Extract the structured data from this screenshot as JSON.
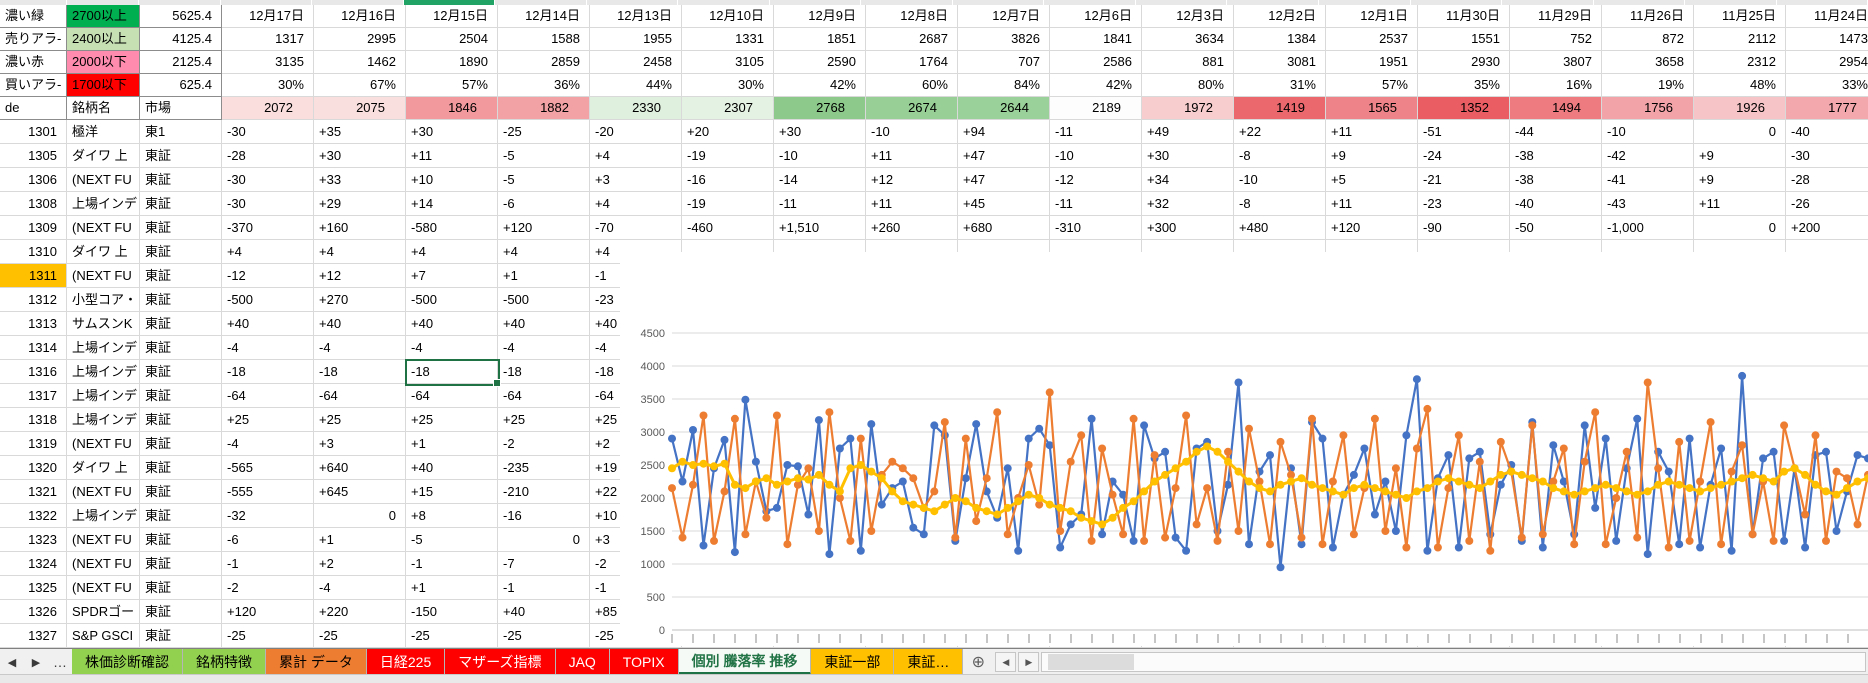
{
  "legend_rows": [
    {
      "label": "濃い緑",
      "threshold": "2700以上",
      "threshold_bg": "#00B050",
      "amount": "5625.4"
    },
    {
      "label": "売りアラ-",
      "threshold": "2400以上",
      "threshold_bg": "#C6E0B4",
      "amount": "4125.4"
    },
    {
      "label": "濃い赤",
      "threshold": "2000以下",
      "threshold_bg": "#FF8CAF",
      "amount": "2125.4"
    },
    {
      "label": "買いアラ-",
      "threshold": "1700以下",
      "threshold_bg": "#FF0000",
      "amount": "625.4"
    }
  ],
  "dates": [
    "12月17日",
    "12月16日",
    "12月15日",
    "12月14日",
    "12月13日",
    "12月10日",
    "12月9日",
    "12月8日",
    "12月7日",
    "12月6日",
    "12月3日",
    "12月2日",
    "12月1日",
    "11月30日",
    "11月29日",
    "11月26日",
    "11月25日",
    "11月24日"
  ],
  "date_rows": {
    "counts_a": [
      "1317",
      "2995",
      "2504",
      "1588",
      "1955",
      "1331",
      "1851",
      "2687",
      "3826",
      "1841",
      "3634",
      "1384",
      "2537",
      "1551",
      "752",
      "872",
      "2112",
      "1473"
    ],
    "counts_b": [
      "3135",
      "1462",
      "1890",
      "2859",
      "2458",
      "3105",
      "2590",
      "1764",
      "707",
      "2586",
      "881",
      "3081",
      "1951",
      "2930",
      "3807",
      "3658",
      "2312",
      "2954"
    ],
    "percents": [
      "30%",
      "67%",
      "57%",
      "36%",
      "44%",
      "30%",
      "42%",
      "60%",
      "84%",
      "42%",
      "80%",
      "31%",
      "57%",
      "35%",
      "16%",
      "19%",
      "48%",
      "33%"
    ]
  },
  "de_row": {
    "a": "de",
    "b": "銘柄名",
    "c": "市場",
    "values": [
      "2072",
      "2075",
      "1846",
      "1882",
      "2330",
      "2307",
      "2768",
      "2674",
      "2644",
      "2189",
      "1972",
      "1419",
      "1565",
      "1352",
      "1494",
      "1756",
      "1926",
      "1777"
    ],
    "colors": [
      "#F9DEDD",
      "#F9DFDE",
      "#F1999C",
      "#F2A2A5",
      "#DFF0DE",
      "#E4F2E3",
      "#8CC98B",
      "#97CF96",
      "#9AD099",
      "#FDFDFD",
      "#F7CDCD",
      "#EB686D",
      "#EE8489",
      "#EA5D63",
      "#ED7B80",
      "#F1A3A7",
      "#F6C4C6",
      "#F2A8AC"
    ]
  },
  "stocks": [
    {
      "code": "1301",
      "name": "極洋",
      "market": "東1",
      "values": [
        "-30",
        "+35",
        "+30",
        "-25",
        "-20",
        "+20",
        "+30",
        "-10",
        "+94",
        "-11",
        "+49",
        "+22",
        "+11",
        "-51",
        "-44",
        "-10",
        "0",
        "-40"
      ]
    },
    {
      "code": "1305",
      "name": "ダイワ 上",
      "market": "東証",
      "values": [
        "-28",
        "+30",
        "+11",
        "-5",
        "+4",
        "-19",
        "-10",
        "+11",
        "+47",
        "-10",
        "+30",
        "-8",
        "+9",
        "-24",
        "-38",
        "-42",
        "+9",
        "-30"
      ]
    },
    {
      "code": "1306",
      "name": "(NEXT FU",
      "market": "東証",
      "values": [
        "-30",
        "+33",
        "+10",
        "-5",
        "+3",
        "-16",
        "-14",
        "+12",
        "+47",
        "-12",
        "+34",
        "-10",
        "+5",
        "-21",
        "-38",
        "-41",
        "+9",
        "-28"
      ]
    },
    {
      "code": "1308",
      "name": "上場インデ",
      "market": "東証",
      "values": [
        "-30",
        "+29",
        "+14",
        "-6",
        "+4",
        "-19",
        "-11",
        "+11",
        "+45",
        "-11",
        "+32",
        "-8",
        "+11",
        "-23",
        "-40",
        "-43",
        "+11",
        "-26"
      ]
    },
    {
      "code": "1309",
      "name": "(NEXT FU",
      "market": "東証",
      "values": [
        "-370",
        "+160",
        "-580",
        "+120",
        "-70",
        "-460",
        "+1,510",
        "+260",
        "+680",
        "-310",
        "+300",
        "+480",
        "+120",
        "-90",
        "-50",
        "-1,000",
        "0",
        "+200"
      ]
    },
    {
      "code": "1310",
      "name": "ダイワ 上",
      "market": "東証",
      "values": [
        "+4",
        "+4",
        "+4",
        "+4",
        "+4"
      ]
    },
    {
      "code": "1311",
      "name": "(NEXT FU",
      "market": "東証",
      "values": [
        "-12",
        "+12",
        "+7",
        "+1",
        "-1"
      ],
      "highlight": true
    },
    {
      "code": "1312",
      "name": "小型コア・",
      "market": "東証",
      "values": [
        "-500",
        "+270",
        "-500",
        "-500",
        "-23"
      ]
    },
    {
      "code": "1313",
      "name": "サムスンK",
      "market": "東証",
      "values": [
        "+40",
        "+40",
        "+40",
        "+40",
        "+40"
      ]
    },
    {
      "code": "1314",
      "name": "上場インデ",
      "market": "東証",
      "values": [
        "-4",
        "-4",
        "-4",
        "-4",
        "-4"
      ]
    },
    {
      "code": "1316",
      "name": "上場インデ",
      "market": "東証",
      "values": [
        "-18",
        "-18",
        "-18",
        "-18",
        "-18"
      ],
      "selected_col": 2
    },
    {
      "code": "1317",
      "name": "上場インデ",
      "market": "東証",
      "values": [
        "-64",
        "-64",
        "-64",
        "-64",
        "-64"
      ]
    },
    {
      "code": "1318",
      "name": "上場インデ",
      "market": "東証",
      "values": [
        "+25",
        "+25",
        "+25",
        "+25",
        "+25"
      ]
    },
    {
      "code": "1319",
      "name": "(NEXT FU",
      "market": "東証",
      "values": [
        "-4",
        "+3",
        "+1",
        "-2",
        "+2"
      ]
    },
    {
      "code": "1320",
      "name": "ダイワ 上",
      "market": "東証",
      "values": [
        "-565",
        "+640",
        "+40",
        "-235",
        "+19"
      ]
    },
    {
      "code": "1321",
      "name": "(NEXT FU",
      "market": "東証",
      "values": [
        "-555",
        "+645",
        "+15",
        "-210",
        "+22"
      ]
    },
    {
      "code": "1322",
      "name": "上場インデ",
      "market": "東証",
      "values": [
        "-32",
        "0",
        "+8",
        "-16",
        "+10"
      ]
    },
    {
      "code": "1323",
      "name": "(NEXT FU",
      "market": "東証",
      "values": [
        "-6",
        "+1",
        "-5",
        "0",
        "+3"
      ]
    },
    {
      "code": "1324",
      "name": "(NEXT FU",
      "market": "東証",
      "values": [
        "-1",
        "+2",
        "-1",
        "-7",
        "-2"
      ]
    },
    {
      "code": "1325",
      "name": "(NEXT FU",
      "market": "東証",
      "values": [
        "-2",
        "-4",
        "+1",
        "-1",
        "-1"
      ]
    },
    {
      "code": "1326",
      "name": "SPDRゴー",
      "market": "東証",
      "values": [
        "+120",
        "+220",
        "-150",
        "+40",
        "+85"
      ]
    },
    {
      "code": "1327",
      "name": "S&P GSCI",
      "market": "東証",
      "values": [
        "-25",
        "-25",
        "-25",
        "-25",
        "-25"
      ]
    }
  ],
  "highlight_color": "#FFC000",
  "selection": {
    "row_code": "1316",
    "date_label": "12月15日",
    "date_index": 2,
    "accent": "#1F7244"
  },
  "chart_data": {
    "type": "line",
    "title": "",
    "xlabel": "",
    "ylabel": "",
    "ylim": [
      0,
      4500
    ],
    "yticks": [
      "4500",
      "4000",
      "3500",
      "3000",
      "2500",
      "2000",
      "1500",
      "1000",
      "500",
      "0"
    ],
    "grid": true,
    "legend": "none",
    "x_tick_style": "rotated tiny date labels (illegible at this scale)",
    "series": [
      {
        "name": "series-blue",
        "color": "#4472C4",
        "values": [
          2900,
          2250,
          3030,
          1280,
          2450,
          2880,
          1180,
          3490,
          2550,
          1800,
          1850,
          2500,
          2480,
          1750,
          3180,
          1150,
          2750,
          2900,
          1200,
          3120,
          1900,
          2150,
          2250,
          1550,
          1450,
          3100,
          2950,
          1350,
          2300,
          3120,
          2100,
          1700,
          2450,
          1200,
          2900,
          3050,
          2800,
          1250,
          1600,
          1750,
          3200,
          1450,
          2250,
          2050,
          1350,
          3100,
          2600,
          2700,
          1400,
          1200,
          2750,
          2850,
          1500,
          2200,
          3750,
          1300,
          2400,
          2650,
          950,
          2450,
          1300,
          3150,
          2900,
          1250,
          2050,
          2350,
          2750,
          1750,
          2250,
          1500,
          2950,
          3800,
          1200,
          2300,
          2650,
          1250,
          2600,
          2700,
          1450,
          2200,
          2500,
          1350,
          3150,
          1250,
          2800,
          2250,
          1450,
          3100,
          1850,
          2900,
          1350,
          2450,
          3200,
          1150,
          2700,
          2400,
          1300,
          2900,
          1250,
          2200,
          2750,
          1200,
          3850,
          1450,
          2600,
          2700,
          1350,
          2450,
          1250,
          2650,
          2700,
          1500,
          2100,
          2650,
          2600
        ]
      },
      {
        "name": "series-orange",
        "color": "#ED7D31",
        "values": [
          2150,
          1400,
          2200,
          3250,
          1350,
          2100,
          3200,
          1450,
          2250,
          1700,
          3250,
          1300,
          2200,
          2450,
          1500,
          3300,
          2000,
          1350,
          2900,
          1500,
          2350,
          2550,
          2450,
          2300,
          1850,
          2100,
          3150,
          1400,
          2900,
          1650,
          2300,
          3300,
          1450,
          2000,
          2500,
          1900,
          3600,
          1500,
          2550,
          2950,
          1350,
          2750,
          2050,
          1450,
          3200,
          1350,
          2650,
          1400,
          2150,
          3250,
          1600,
          2150,
          1350,
          2700,
          1500,
          3050,
          2250,
          1300,
          2850,
          2350,
          1400,
          3200,
          1300,
          2250,
          2950,
          1450,
          2150,
          3200,
          1500,
          2450,
          1250,
          2750,
          3350,
          1250,
          2150,
          2950,
          1350,
          2550,
          1200,
          2850,
          2400,
          1400,
          3100,
          1450,
          2250,
          2750,
          1300,
          2550,
          3300,
          1300,
          2000,
          2700,
          1400,
          3750,
          2450,
          1250,
          2850,
          1350,
          2250,
          3150,
          1300,
          2400,
          2800,
          1450,
          2250,
          1350,
          3100,
          2450,
          1750,
          2950,
          1350,
          2400,
          2300,
          1600,
          2350
        ]
      },
      {
        "name": "series-yellow",
        "color": "#FFC000",
        "values": [
          2450,
          2550,
          2500,
          2520,
          2480,
          2520,
          2200,
          2150,
          2250,
          2300,
          2200,
          2250,
          2300,
          2280,
          2350,
          2200,
          2100,
          2450,
          2500,
          2400,
          2300,
          2100,
          1950,
          1900,
          1850,
          1800,
          1900,
          2000,
          1950,
          1850,
          1800,
          1750,
          1850,
          1950,
          2050,
          2000,
          1900,
          1850,
          1800,
          1700,
          1650,
          1600,
          1700,
          1850,
          1950,
          2100,
          2250,
          2350,
          2450,
          2550,
          2700,
          2780,
          2700,
          2550,
          2400,
          2250,
          2150,
          2100,
          2200,
          2250,
          2300,
          2200,
          2150,
          2100,
          2050,
          2150,
          2200,
          2150,
          2100,
          2050,
          2000,
          2100,
          2150,
          2250,
          2300,
          2250,
          2200,
          2150,
          2250,
          2350,
          2400,
          2350,
          2300,
          2250,
          2150,
          2100,
          2050,
          2100,
          2150,
          2200,
          2150,
          2100,
          2050,
          2100,
          2200,
          2250,
          2200,
          2150,
          2100,
          2150,
          2200,
          2250,
          2300,
          2350,
          2300,
          2250,
          2400,
          2450,
          2350,
          2200,
          2100,
          2050,
          2150,
          2250,
          2300
        ]
      }
    ]
  },
  "sheet_tabs": {
    "nav_left": [
      "◀",
      "▶",
      "…"
    ],
    "tabs": [
      {
        "label": "株価診断確認",
        "bg": "#92D050",
        "color": "#000000"
      },
      {
        "label": "銘柄特徴",
        "bg": "#92D050",
        "color": "#000000"
      },
      {
        "label": "累計 データ",
        "bg": "#ED7D31",
        "color": "#000000"
      },
      {
        "label": "日経225",
        "bg": "#FF0000",
        "color": "#FFFFFF"
      },
      {
        "label": "マザーズ指標",
        "bg": "#FF0000",
        "color": "#FFFFFF"
      },
      {
        "label": "JAQ",
        "bg": "#FF0000",
        "color": "#FFFFFF"
      },
      {
        "label": "TOPIX",
        "bg": "#FF0000",
        "color": "#FFFFFF"
      },
      {
        "label": "個別 騰落率 推移",
        "bg": "#F6FAF6",
        "color": "#217346",
        "active": true
      },
      {
        "label": "東証一部",
        "bg": "#FFC000",
        "color": "#000000"
      },
      {
        "label": "東証…",
        "bg": "#FFC000",
        "color": "#000000"
      }
    ],
    "new_sheet": "⊕",
    "scroll_left": "◀",
    "scroll_right": "▶"
  }
}
